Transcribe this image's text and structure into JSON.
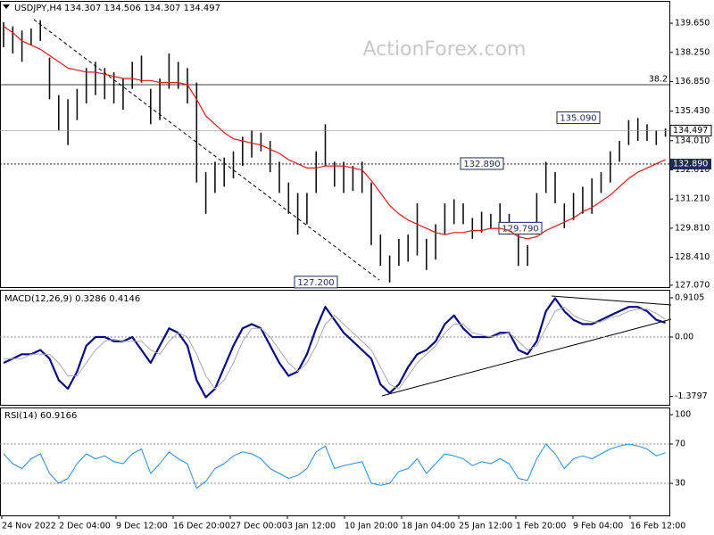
{
  "chart_data": [
    {
      "type": "ohlc",
      "title": "USDJPY,H4",
      "subtitle": "134.307 134.506 134.307 134.497",
      "watermark": "ActionForex.com",
      "color": "#111111",
      "high": [
        139.7,
        139.5,
        139.3,
        139.4,
        139.8,
        138.0,
        136.2,
        136.0,
        136.5,
        137.5,
        137.8,
        137.5,
        137.3,
        137.0,
        137.8,
        138.1,
        136.5,
        137.0,
        138.2,
        137.8,
        137.5,
        136.8,
        132.5,
        133.0,
        133.2,
        133.5,
        134.2,
        134.5,
        134.4,
        134.0,
        133.0,
        132.0,
        131.5,
        131.5,
        133.5,
        134.8,
        133.0,
        133.0,
        132.8,
        133.0,
        132.0,
        129.5,
        128.5,
        129.3,
        129.5,
        131.0,
        129.3,
        130.0,
        131.0,
        131.2,
        131.0,
        130.3,
        130.6,
        130.5,
        131.0,
        130.5,
        129.5,
        129.0,
        131.5,
        133.0,
        132.5,
        131.0,
        131.5,
        131.8,
        132.2,
        132.5,
        133.5,
        134.0,
        135.0,
        135.1,
        134.8,
        134.5,
        134.6
      ],
      "low": [
        138.5,
        138.2,
        137.8,
        138.6,
        138.8,
        136.0,
        134.5,
        133.8,
        135.0,
        135.8,
        136.2,
        136.0,
        135.8,
        135.5,
        136.5,
        136.8,
        134.8,
        135.0,
        136.5,
        136.5,
        135.8,
        132.0,
        130.5,
        131.5,
        131.8,
        132.2,
        132.8,
        133.2,
        133.5,
        132.5,
        131.5,
        130.5,
        129.5,
        130.0,
        131.5,
        132.8,
        131.8,
        131.5,
        131.6,
        131.5,
        129.0,
        128.0,
        127.2,
        128.0,
        128.2,
        128.5,
        127.8,
        128.3,
        129.5,
        130.0,
        130.0,
        129.3,
        129.6,
        129.8,
        130.0,
        129.5,
        128.0,
        128.0,
        129.5,
        131.5,
        131.0,
        129.8,
        130.2,
        130.5,
        130.5,
        131.5,
        132.0,
        133.0,
        133.8,
        134.0,
        134.0,
        133.8,
        134.2
      ],
      "series": [
        {
          "color": "#e01818",
          "values": [
            139.5,
            139.2,
            138.8,
            138.6,
            138.4,
            138.1,
            137.8,
            137.5,
            137.4,
            137.3,
            137.3,
            137.2,
            137.1,
            137.0,
            137.0,
            136.9,
            136.9,
            136.8,
            136.8,
            136.8,
            136.7,
            136.0,
            135.2,
            134.8,
            134.4,
            134.1,
            134.0,
            133.9,
            133.8,
            133.6,
            133.4,
            133.1,
            132.9,
            132.7,
            132.7,
            132.8,
            132.8,
            132.8,
            132.7,
            132.6,
            132.1,
            131.5,
            130.9,
            130.5,
            130.2,
            130.0,
            129.8,
            129.6,
            129.5,
            129.6,
            129.6,
            129.7,
            129.7,
            129.8,
            129.8,
            129.7,
            129.4,
            129.3,
            129.4,
            129.7,
            129.9,
            130.1,
            130.3,
            130.6,
            130.8,
            131.1,
            131.4,
            131.8,
            132.2,
            132.5,
            132.7,
            132.9,
            133.1
          ]
        }
      ],
      "ylim": [
        126.98,
        140.68
      ],
      "yticks": [
        {
          "value": 139.65,
          "label": "139.650"
        },
        {
          "value": 138.25,
          "label": "138.250"
        },
        {
          "value": 136.85,
          "label": "136.850"
        },
        {
          "value": 135.43,
          "label": "135.430"
        },
        {
          "value": 134.01,
          "label": "134.010"
        },
        {
          "value": 132.61,
          "label": "132.610"
        },
        {
          "value": 131.21,
          "label": "131.210"
        },
        {
          "value": 129.81,
          "label": "129.810"
        },
        {
          "value": 128.41,
          "label": "128.410"
        },
        {
          "value": 127.07,
          "label": "127.070"
        }
      ],
      "levels": [
        {
          "value": 136.7,
          "label": "38.2",
          "style": "solid"
        },
        {
          "value": 132.89,
          "label": "132.890",
          "style": "dotted"
        }
      ],
      "last_price": {
        "value": 134.497,
        "label": "134.497"
      },
      "annotations": [
        {
          "value": 135.09,
          "label": "135.090"
        },
        {
          "value": 132.89,
          "label": "132.890"
        },
        {
          "value": 129.79,
          "label": "129.790"
        },
        {
          "value": 127.2,
          "label": "127.200"
        }
      ]
    },
    {
      "type": "line",
      "title": "MACD(12,26,9) 0.3286 0.4146",
      "series": [
        {
          "color": "#0a0a80",
          "width": 2.2,
          "values": [
            -0.6,
            -0.5,
            -0.4,
            -0.4,
            -0.3,
            -0.5,
            -1.0,
            -1.2,
            -0.8,
            -0.2,
            0.0,
            0.0,
            -0.1,
            -0.1,
            0.0,
            -0.3,
            -0.6,
            -0.2,
            0.2,
            0.1,
            -0.2,
            -1.0,
            -1.4,
            -1.2,
            -0.7,
            -0.2,
            0.2,
            0.3,
            0.2,
            -0.2,
            -0.6,
            -0.9,
            -0.8,
            -0.4,
            0.2,
            0.7,
            0.4,
            0.1,
            -0.1,
            -0.3,
            -0.5,
            -1.1,
            -1.3,
            -1.1,
            -0.7,
            -0.4,
            -0.3,
            -0.1,
            0.3,
            0.5,
            0.2,
            0.0,
            0.0,
            0.0,
            0.1,
            0.1,
            -0.3,
            -0.4,
            -0.1,
            0.6,
            0.9,
            0.6,
            0.4,
            0.3,
            0.3,
            0.4,
            0.5,
            0.6,
            0.7,
            0.7,
            0.6,
            0.4,
            0.33
          ]
        },
        {
          "color": "#a8a8a8",
          "width": 1,
          "values": [
            -0.5,
            -0.5,
            -0.5,
            -0.4,
            -0.4,
            -0.4,
            -0.6,
            -0.9,
            -0.9,
            -0.6,
            -0.3,
            -0.1,
            -0.05,
            -0.1,
            -0.1,
            -0.1,
            -0.3,
            -0.4,
            -0.1,
            0.1,
            0.0,
            -0.4,
            -0.9,
            -1.2,
            -1.0,
            -0.6,
            -0.1,
            0.2,
            0.2,
            0.0,
            -0.3,
            -0.6,
            -0.8,
            -0.6,
            -0.2,
            0.3,
            0.5,
            0.3,
            0.1,
            -0.1,
            -0.3,
            -0.7,
            -1.1,
            -1.2,
            -0.9,
            -0.6,
            -0.4,
            -0.2,
            0.1,
            0.3,
            0.3,
            0.1,
            0.05,
            0.0,
            0.05,
            0.1,
            -0.1,
            -0.3,
            -0.2,
            0.2,
            0.6,
            0.7,
            0.5,
            0.4,
            0.35,
            0.35,
            0.45,
            0.5,
            0.6,
            0.65,
            0.65,
            0.55,
            0.41
          ]
        }
      ],
      "ylim": [
        -1.573,
        1.076
      ],
      "yticks": [
        0.9105,
        {
          "value": 0,
          "label": "0.00"
        },
        -1.3797
      ],
      "levels": [
        0
      ]
    },
    {
      "type": "line",
      "title": "RSI(14) 60.9166",
      "series": [
        {
          "color": "#2a8ae0",
          "width": 1,
          "values": [
            60,
            50,
            45,
            55,
            60,
            40,
            30,
            35,
            50,
            60,
            55,
            58,
            52,
            50,
            60,
            65,
            40,
            50,
            62,
            55,
            50,
            25,
            32,
            45,
            50,
            58,
            62,
            60,
            55,
            45,
            40,
            35,
            38,
            45,
            62,
            68,
            45,
            48,
            50,
            52,
            30,
            28,
            30,
            42,
            45,
            55,
            40,
            50,
            60,
            58,
            55,
            48,
            52,
            50,
            55,
            50,
            35,
            33,
            55,
            70,
            60,
            45,
            55,
            58,
            55,
            60,
            65,
            68,
            70,
            68,
            65,
            58,
            61
          ]
        }
      ],
      "ylim": [
        -2.7,
        106.4
      ],
      "yticks": [
        100,
        70,
        30
      ],
      "levels": [
        70,
        30
      ],
      "x_labels": [
        "24 Nov 2022",
        "2 Dec 04:00",
        "9 Dec 12:00",
        "16 Dec 20:00",
        "27 Dec 00:00",
        "3 Jan 12:00",
        "10 Jan 20:00",
        "18 Jan 04:00",
        "25 Jan 12:00",
        "1 Feb 20:00",
        "9 Feb 04:00",
        "16 Feb 12:00"
      ]
    }
  ]
}
